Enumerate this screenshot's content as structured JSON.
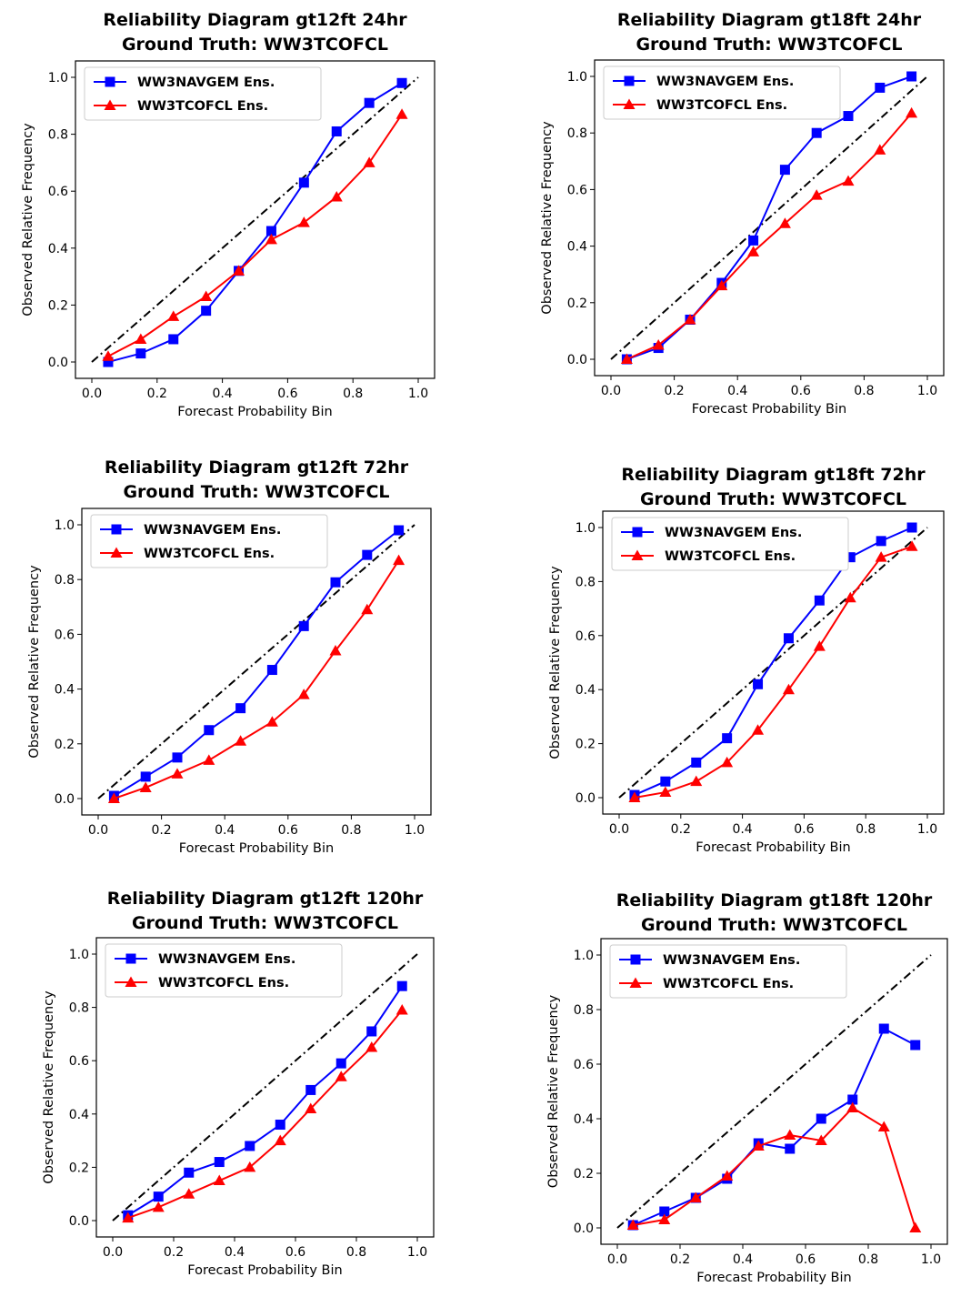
{
  "chart_data": [
    {
      "type": "line",
      "title": "Reliability Diagram gt12ft 24hr",
      "subtitle": "Ground Truth: WW3TCOFCL",
      "xlabel": "Forecast Probability Bin",
      "ylabel": "Observed Relative Frequency",
      "xlim": [
        0,
        1
      ],
      "ylim": [
        0,
        1
      ],
      "xticks": [
        "0.0",
        "0.2",
        "0.4",
        "0.6",
        "0.8",
        "1.0"
      ],
      "yticks": [
        "0.0",
        "0.2",
        "0.4",
        "0.6",
        "0.8",
        "1.0"
      ],
      "legend": "top-left",
      "grid": false,
      "x": [
        0.05,
        0.15,
        0.25,
        0.35,
        0.45,
        0.55,
        0.65,
        0.75,
        0.85,
        0.95
      ],
      "series": [
        {
          "name": "WW3NAVGEM Ens.",
          "color": "#0000ff",
          "marker": "square",
          "values": [
            0.0,
            0.03,
            0.08,
            0.18,
            0.32,
            0.46,
            0.63,
            0.81,
            0.91,
            0.98
          ]
        },
        {
          "name": "WW3TCOFCL Ens.",
          "color": "#ff0000",
          "marker": "triangle",
          "values": [
            0.02,
            0.08,
            0.16,
            0.23,
            0.32,
            0.43,
            0.49,
            0.58,
            0.7,
            0.87
          ]
        }
      ]
    },
    {
      "type": "line",
      "title": "Reliability Diagram gt18ft 24hr",
      "subtitle": "Ground Truth: WW3TCOFCL",
      "xlabel": "Forecast Probability Bin",
      "ylabel": "Observed Relative Frequency",
      "xlim": [
        0,
        1
      ],
      "ylim": [
        0,
        1
      ],
      "xticks": [
        "0.0",
        "0.2",
        "0.4",
        "0.6",
        "0.8",
        "1.0"
      ],
      "yticks": [
        "0.0",
        "0.2",
        "0.4",
        "0.6",
        "0.8",
        "1.0"
      ],
      "legend": "top-left",
      "grid": false,
      "x": [
        0.05,
        0.15,
        0.25,
        0.35,
        0.45,
        0.55,
        0.65,
        0.75,
        0.85,
        0.95
      ],
      "series": [
        {
          "name": "WW3NAVGEM Ens.",
          "color": "#0000ff",
          "marker": "square",
          "values": [
            0.0,
            0.04,
            0.14,
            0.27,
            0.42,
            0.67,
            0.8,
            0.86,
            0.96,
            1.0
          ]
        },
        {
          "name": "WW3TCOFCL Ens.",
          "color": "#ff0000",
          "marker": "triangle",
          "values": [
            0.0,
            0.05,
            0.14,
            0.26,
            0.38,
            0.48,
            0.58,
            0.63,
            0.74,
            0.87
          ]
        }
      ]
    },
    {
      "type": "line",
      "title": "Reliability Diagram gt12ft 72hr",
      "subtitle": "Ground Truth: WW3TCOFCL",
      "xlabel": "Forecast Probability Bin",
      "ylabel": "Observed Relative Frequency",
      "xlim": [
        0,
        1
      ],
      "ylim": [
        0,
        1
      ],
      "xticks": [
        "0.0",
        "0.2",
        "0.4",
        "0.6",
        "0.8",
        "1.0"
      ],
      "yticks": [
        "0.0",
        "0.2",
        "0.4",
        "0.6",
        "0.8",
        "1.0"
      ],
      "legend": "top-left",
      "grid": false,
      "x": [
        0.05,
        0.15,
        0.25,
        0.35,
        0.45,
        0.55,
        0.65,
        0.75,
        0.85,
        0.95
      ],
      "series": [
        {
          "name": "WW3NAVGEM Ens.",
          "color": "#0000ff",
          "marker": "square",
          "values": [
            0.01,
            0.08,
            0.15,
            0.25,
            0.33,
            0.47,
            0.63,
            0.79,
            0.89,
            0.98
          ]
        },
        {
          "name": "WW3TCOFCL Ens.",
          "color": "#ff0000",
          "marker": "triangle",
          "values": [
            0.0,
            0.04,
            0.09,
            0.14,
            0.21,
            0.28,
            0.38,
            0.54,
            0.69,
            0.87
          ]
        }
      ]
    },
    {
      "type": "line",
      "title": "Reliability Diagram gt18ft 72hr",
      "subtitle": "Ground Truth: WW3TCOFCL",
      "xlabel": "Forecast Probability Bin",
      "ylabel": "Observed Relative Frequency",
      "xlim": [
        0,
        1
      ],
      "ylim": [
        0,
        1
      ],
      "xticks": [
        "0.0",
        "0.2",
        "0.4",
        "0.6",
        "0.8",
        "1.0"
      ],
      "yticks": [
        "0.0",
        "0.2",
        "0.4",
        "0.6",
        "0.8",
        "1.0"
      ],
      "legend": "top-left",
      "grid": false,
      "x": [
        0.05,
        0.15,
        0.25,
        0.35,
        0.45,
        0.55,
        0.65,
        0.75,
        0.85,
        0.95
      ],
      "series": [
        {
          "name": "WW3NAVGEM Ens.",
          "color": "#0000ff",
          "marker": "square",
          "values": [
            0.01,
            0.06,
            0.13,
            0.22,
            0.42,
            0.59,
            0.73,
            0.89,
            0.95,
            1.0
          ]
        },
        {
          "name": "WW3TCOFCL Ens.",
          "color": "#ff0000",
          "marker": "triangle",
          "values": [
            0.0,
            0.02,
            0.06,
            0.13,
            0.25,
            0.4,
            0.56,
            0.74,
            0.89,
            0.93
          ]
        }
      ]
    },
    {
      "type": "line",
      "title": "Reliability Diagram gt12ft 120hr",
      "subtitle": "Ground Truth: WW3TCOFCL",
      "xlabel": "Forecast Probability Bin",
      "ylabel": "Observed Relative Frequency",
      "xlim": [
        0,
        1
      ],
      "ylim": [
        0,
        1
      ],
      "xticks": [
        "0.0",
        "0.2",
        "0.4",
        "0.6",
        "0.8",
        "1.0"
      ],
      "yticks": [
        "0.0",
        "0.2",
        "0.4",
        "0.6",
        "0.8",
        "1.0"
      ],
      "legend": "top-left",
      "grid": false,
      "x": [
        0.05,
        0.15,
        0.25,
        0.35,
        0.45,
        0.55,
        0.65,
        0.75,
        0.85,
        0.95
      ],
      "series": [
        {
          "name": "WW3NAVGEM Ens.",
          "color": "#0000ff",
          "marker": "square",
          "values": [
            0.02,
            0.09,
            0.18,
            0.22,
            0.28,
            0.36,
            0.49,
            0.59,
            0.71,
            0.88
          ]
        },
        {
          "name": "WW3TCOFCL Ens.",
          "color": "#ff0000",
          "marker": "triangle",
          "values": [
            0.01,
            0.05,
            0.1,
            0.15,
            0.2,
            0.3,
            0.42,
            0.54,
            0.65,
            0.79
          ]
        }
      ]
    },
    {
      "type": "line",
      "title": "Reliability Diagram gt18ft 120hr",
      "subtitle": "Ground Truth: WW3TCOFCL",
      "xlabel": "Forecast Probability Bin",
      "ylabel": "Observed Relative Frequency",
      "xlim": [
        0,
        1
      ],
      "ylim": [
        0,
        1
      ],
      "xticks": [
        "0.0",
        "0.2",
        "0.4",
        "0.6",
        "0.8",
        "1.0"
      ],
      "yticks": [
        "0.0",
        "0.2",
        "0.4",
        "0.6",
        "0.8",
        "1.0"
      ],
      "legend": "top-left",
      "grid": false,
      "x": [
        0.05,
        0.15,
        0.25,
        0.35,
        0.45,
        0.55,
        0.65,
        0.75,
        0.85,
        0.95
      ],
      "series": [
        {
          "name": "WW3NAVGEM Ens.",
          "color": "#0000ff",
          "marker": "square",
          "values": [
            0.01,
            0.06,
            0.11,
            0.18,
            0.31,
            0.29,
            0.4,
            0.47,
            0.73,
            0.67
          ]
        },
        {
          "name": "WW3TCOFCL Ens.",
          "color": "#ff0000",
          "marker": "triangle",
          "values": [
            0.01,
            0.03,
            0.11,
            0.19,
            0.3,
            0.34,
            0.32,
            0.44,
            0.37,
            0.0
          ]
        }
      ]
    }
  ]
}
